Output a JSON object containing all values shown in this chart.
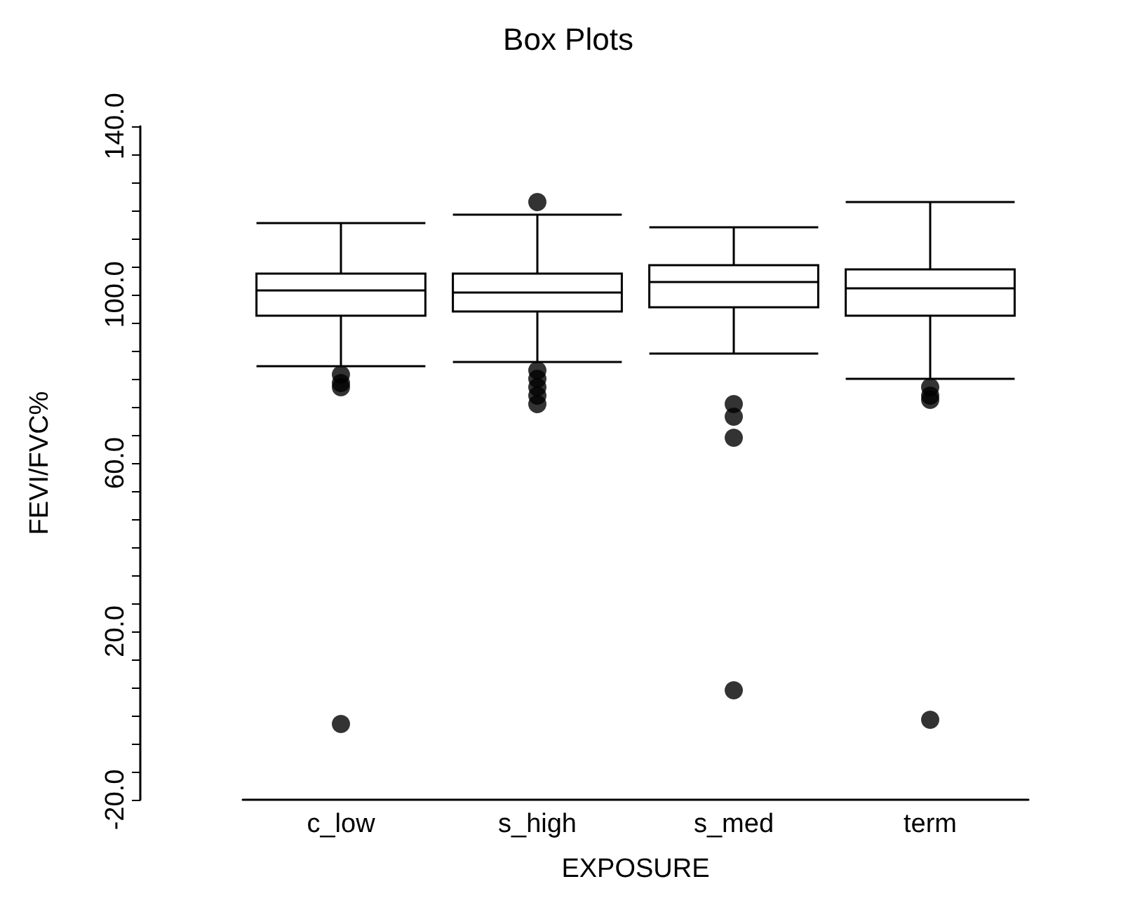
{
  "chart_data": {
    "type": "box",
    "title": "Box Plots",
    "xlabel": "EXPOSURE",
    "ylabel": "FEVI/FVC%",
    "categories": [
      "c_low",
      "s_high",
      "s_med",
      "term"
    ],
    "ylim": [
      -20,
      140
    ],
    "yticks": [
      {
        "value": -20,
        "label": "-20.0"
      },
      {
        "value": 20,
        "label": "20.0"
      },
      {
        "value": 60,
        "label": "60.0"
      },
      {
        "value": 100,
        "label": "100.0"
      },
      {
        "value": 140,
        "label": "140.0"
      }
    ],
    "grid": false,
    "marker": "circle",
    "series": [
      {
        "color": "#000000",
        "boxes": [
          {
            "low": 83,
            "q1": 95,
            "median": 101,
            "q3": 105,
            "high": 117,
            "outliers": [
              81,
              79,
              78,
              -2
            ]
          },
          {
            "low": 84,
            "q1": 96,
            "median": 100.5,
            "q3": 105,
            "high": 119,
            "outliers": [
              122,
              82,
              80,
              78,
              76,
              74
            ]
          },
          {
            "low": 86,
            "q1": 97,
            "median": 103,
            "q3": 107,
            "high": 116,
            "outliers": [
              74,
              71,
              66,
              6
            ]
          },
          {
            "low": 80,
            "q1": 95,
            "median": 101.5,
            "q3": 106,
            "high": 122,
            "outliers": [
              78,
              76,
              75,
              -1
            ]
          }
        ]
      }
    ]
  }
}
